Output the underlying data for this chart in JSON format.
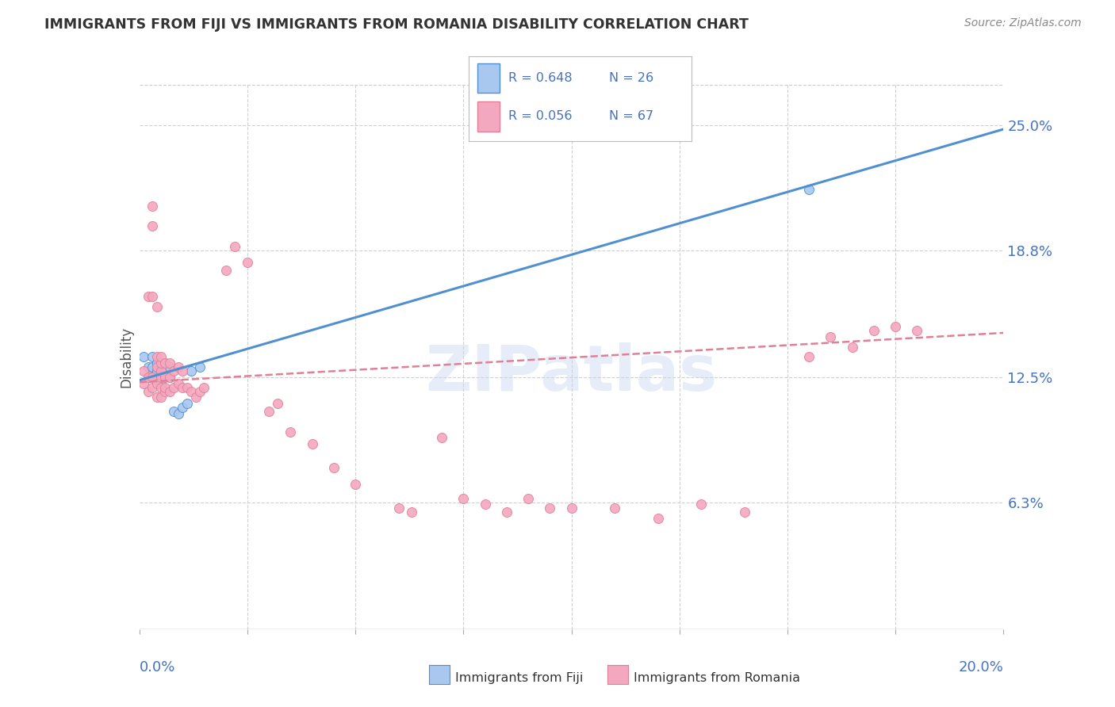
{
  "title": "IMMIGRANTS FROM FIJI VS IMMIGRANTS FROM ROMANIA DISABILITY CORRELATION CHART",
  "source": "Source: ZipAtlas.com",
  "ylabel": "Disability",
  "ytick_labels": [
    "25.0%",
    "18.8%",
    "12.5%",
    "6.3%"
  ],
  "ytick_values": [
    0.25,
    0.188,
    0.125,
    0.063
  ],
  "xlim": [
    0.0,
    0.2
  ],
  "ylim": [
    0.0,
    0.27
  ],
  "legend_fiji_r": "R = 0.648",
  "legend_fiji_n": "N = 26",
  "legend_romania_r": "R = 0.056",
  "legend_romania_n": "N = 67",
  "fiji_color": "#A8C8F0",
  "romania_color": "#F4A8C0",
  "fiji_line_color": "#5090D0",
  "romania_line_color": "#E08098",
  "background_color": "#FFFFFF",
  "watermark": "ZIPatlas",
  "fiji_x": [
    0.001,
    0.002,
    0.002,
    0.003,
    0.003,
    0.003,
    0.003,
    0.004,
    0.004,
    0.004,
    0.004,
    0.005,
    0.005,
    0.005,
    0.005,
    0.006,
    0.006,
    0.007,
    0.007,
    0.008,
    0.009,
    0.01,
    0.011,
    0.012,
    0.014,
    0.155
  ],
  "fiji_y": [
    0.135,
    0.125,
    0.13,
    0.126,
    0.128,
    0.13,
    0.135,
    0.125,
    0.128,
    0.13,
    0.132,
    0.122,
    0.126,
    0.128,
    0.13,
    0.128,
    0.132,
    0.125,
    0.13,
    0.108,
    0.107,
    0.11,
    0.112,
    0.128,
    0.13,
    0.218
  ],
  "romania_x": [
    0.001,
    0.001,
    0.002,
    0.002,
    0.002,
    0.003,
    0.003,
    0.003,
    0.003,
    0.003,
    0.004,
    0.004,
    0.004,
    0.004,
    0.004,
    0.005,
    0.005,
    0.005,
    0.005,
    0.005,
    0.005,
    0.006,
    0.006,
    0.006,
    0.006,
    0.007,
    0.007,
    0.007,
    0.008,
    0.008,
    0.009,
    0.009,
    0.01,
    0.01,
    0.011,
    0.012,
    0.013,
    0.014,
    0.015,
    0.02,
    0.022,
    0.025,
    0.03,
    0.032,
    0.035,
    0.04,
    0.045,
    0.05,
    0.06,
    0.063,
    0.07,
    0.075,
    0.08,
    0.085,
    0.09,
    0.095,
    0.1,
    0.11,
    0.12,
    0.13,
    0.14,
    0.155,
    0.16,
    0.165,
    0.17,
    0.175,
    0.18
  ],
  "romania_y": [
    0.122,
    0.128,
    0.118,
    0.125,
    0.165,
    0.12,
    0.125,
    0.165,
    0.21,
    0.2,
    0.115,
    0.122,
    0.13,
    0.135,
    0.16,
    0.115,
    0.12,
    0.125,
    0.128,
    0.132,
    0.135,
    0.118,
    0.12,
    0.125,
    0.132,
    0.118,
    0.125,
    0.132,
    0.12,
    0.128,
    0.122,
    0.13,
    0.12,
    0.128,
    0.12,
    0.118,
    0.115,
    0.118,
    0.12,
    0.178,
    0.19,
    0.182,
    0.108,
    0.112,
    0.098,
    0.092,
    0.08,
    0.072,
    0.06,
    0.058,
    0.095,
    0.065,
    0.062,
    0.058,
    0.065,
    0.06,
    0.06,
    0.06,
    0.055,
    0.062,
    0.058,
    0.135,
    0.145,
    0.14,
    0.148,
    0.15,
    0.148
  ]
}
